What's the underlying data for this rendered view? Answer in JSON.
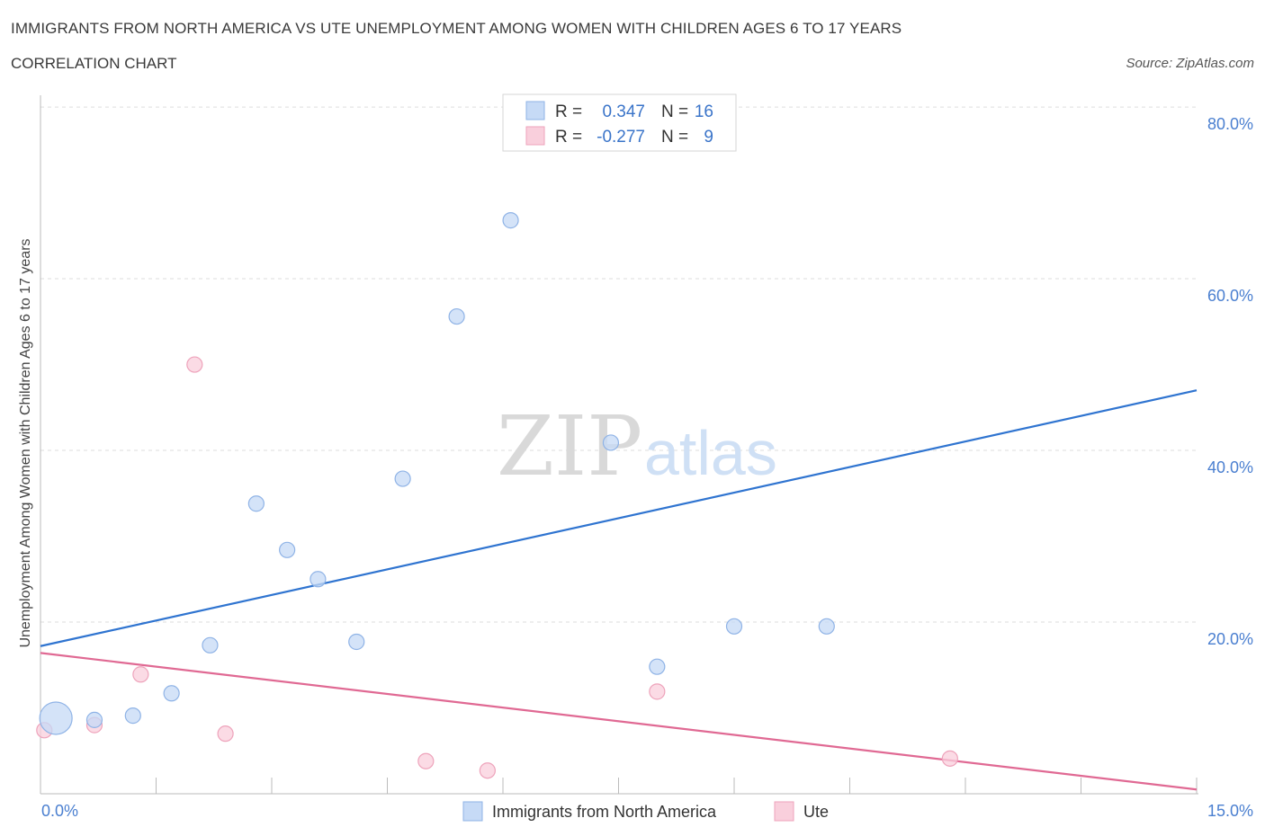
{
  "header": {
    "title": "IMMIGRANTS FROM NORTH AMERICA VS UTE UNEMPLOYMENT AMONG WOMEN WITH CHILDREN AGES 6 TO 17 YEARS",
    "subtitle": "CORRELATION CHART",
    "source": "Source: ZipAtlas.com"
  },
  "watermark": {
    "zip": "ZIP",
    "atlas": "atlas"
  },
  "colors": {
    "blue_fill": "#c6daf6",
    "blue_stroke": "#8fb3e6",
    "blue_line": "#2f74d0",
    "pink_fill": "#f9cfdc",
    "pink_stroke": "#eea3bb",
    "pink_line": "#e06993",
    "tick": "#4a7fd0",
    "grid": "#dddddd"
  },
  "stats": [
    {
      "r_label": "R =",
      "r_value": "0.347",
      "n_label": "N =",
      "n_value": "16"
    },
    {
      "r_label": "R =",
      "r_value": "-0.277",
      "n_label": "N =",
      "n_value": "9"
    }
  ],
  "chart_data": {
    "type": "scatter",
    "title": "IMMIGRANTS FROM NORTH AMERICA VS UTE UNEMPLOYMENT AMONG WOMEN WITH CHILDREN AGES 6 TO 17 YEARS",
    "xlabel": "",
    "ylabel": "Unemployment Among Women with Children Ages 6 to 17 years",
    "xlim": [
      0,
      15
    ],
    "ylim": [
      0,
      80
    ],
    "x_tick_labels": [
      "0.0%",
      "15.0%"
    ],
    "y_ticks": [
      20,
      40,
      60,
      80
    ],
    "y_tick_labels": [
      "20.0%",
      "40.0%",
      "60.0%",
      "80.0%"
    ],
    "grid": true,
    "legend_position": "bottom",
    "series": [
      {
        "name": "Immigrants from North America",
        "color": "#c6daf6",
        "points": [
          {
            "x": 0.2,
            "y": 8.8,
            "size": "large"
          },
          {
            "x": 0.7,
            "y": 8.6
          },
          {
            "x": 1.2,
            "y": 9.1
          },
          {
            "x": 1.7,
            "y": 11.7
          },
          {
            "x": 2.2,
            "y": 17.3
          },
          {
            "x": 2.8,
            "y": 33.8
          },
          {
            "x": 3.2,
            "y": 28.4
          },
          {
            "x": 3.6,
            "y": 25.0
          },
          {
            "x": 4.1,
            "y": 17.7
          },
          {
            "x": 4.7,
            "y": 36.7
          },
          {
            "x": 5.4,
            "y": 55.6
          },
          {
            "x": 6.1,
            "y": 66.8
          },
          {
            "x": 7.4,
            "y": 40.9
          },
          {
            "x": 8.0,
            "y": 14.8
          },
          {
            "x": 9.0,
            "y": 19.5
          },
          {
            "x": 10.2,
            "y": 19.5
          }
        ],
        "trend": {
          "x": [
            0,
            15
          ],
          "y": [
            17.2,
            47.0
          ]
        }
      },
      {
        "name": "Ute",
        "color": "#f9cfdc",
        "points": [
          {
            "x": 0.05,
            "y": 7.4
          },
          {
            "x": 0.7,
            "y": 8.0
          },
          {
            "x": 1.3,
            "y": 13.9
          },
          {
            "x": 2.0,
            "y": 50.0
          },
          {
            "x": 2.4,
            "y": 7.0
          },
          {
            "x": 5.0,
            "y": 3.8
          },
          {
            "x": 5.8,
            "y": 2.7
          },
          {
            "x": 8.0,
            "y": 11.9
          },
          {
            "x": 11.8,
            "y": 4.1
          }
        ],
        "trend": {
          "x": [
            0,
            15
          ],
          "y": [
            16.4,
            0.5
          ]
        }
      }
    ]
  }
}
